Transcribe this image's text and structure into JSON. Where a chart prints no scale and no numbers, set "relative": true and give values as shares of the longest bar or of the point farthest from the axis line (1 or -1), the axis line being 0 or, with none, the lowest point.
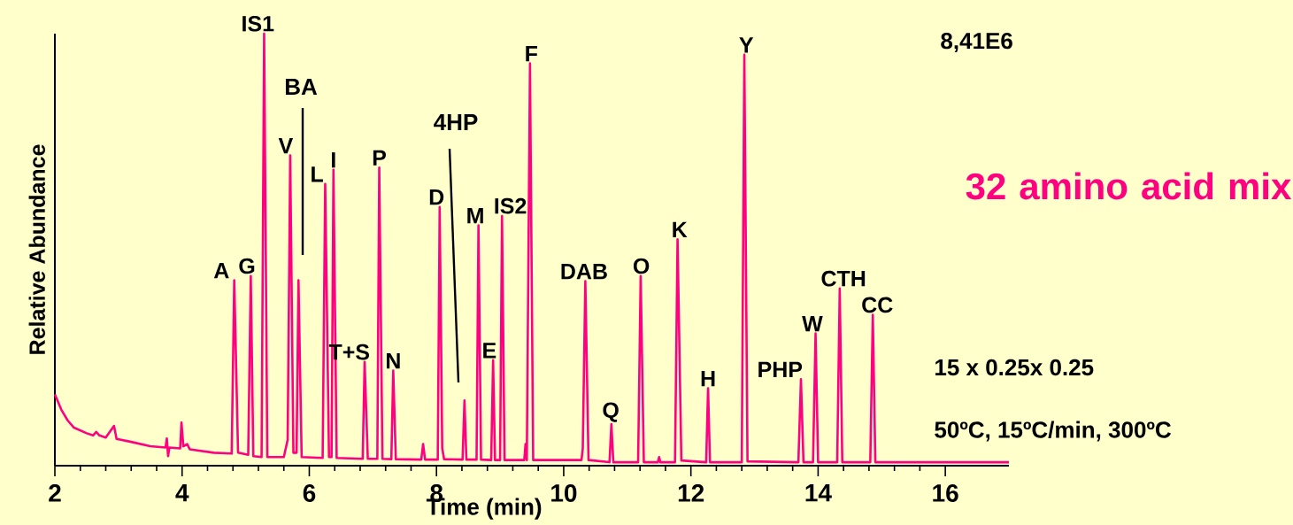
{
  "chart_data": {
    "type": "line",
    "relative": true,
    "title": "32 amino acid mix",
    "xlabel": "Time (min)",
    "ylabel": "Relative Abundance",
    "xlim": [
      2,
      17
    ],
    "xticks": [
      2,
      4,
      6,
      8,
      10,
      12,
      14,
      16
    ],
    "series": [
      {
        "color": "#ff0080",
        "x": [
          2.0,
          2.1,
          2.2,
          2.3,
          2.5,
          2.6,
          2.65,
          2.7,
          2.8,
          2.93,
          2.97,
          3.2,
          3.5,
          3.74,
          3.76,
          3.78,
          3.8,
          3.97,
          3.99,
          4.02,
          4.08,
          4.12,
          4.5,
          4.78,
          4.82,
          4.88,
          5.04,
          5.08,
          5.12,
          5.25,
          5.29,
          5.34,
          5.6,
          5.66,
          5.7,
          5.75,
          5.8,
          5.83,
          5.88,
          6.21,
          6.25,
          6.31,
          6.35,
          6.38,
          6.43,
          6.84,
          6.87,
          6.92,
          7.07,
          7.1,
          7.15,
          7.29,
          7.32,
          7.36,
          7.76,
          7.79,
          7.82,
          8.02,
          8.05,
          8.09,
          8.12,
          8.41,
          8.44,
          8.47,
          8.63,
          8.66,
          8.7,
          8.86,
          8.89,
          8.92,
          9.0,
          9.03,
          9.07,
          9.38,
          9.4,
          9.42,
          9.47,
          9.52,
          10.28,
          10.3,
          10.34,
          10.39,
          10.72,
          10.75,
          10.78,
          11.17,
          11.21,
          11.26,
          11.48,
          11.5,
          11.52,
          11.75,
          11.79,
          11.85,
          12.24,
          12.27,
          12.3,
          12.8,
          12.84,
          12.89,
          13.69,
          13.73,
          13.77,
          13.92,
          13.96,
          14.0,
          14.3,
          14.34,
          14.38,
          14.82,
          14.86,
          14.9,
          17.0
        ],
        "values": [
          0.165,
          0.13,
          0.105,
          0.088,
          0.075,
          0.07,
          0.078,
          0.07,
          0.065,
          0.092,
          0.062,
          0.055,
          0.045,
          0.042,
          0.063,
          0.022,
          0.042,
          0.04,
          0.1,
          0.045,
          0.05,
          0.038,
          0.03,
          0.028,
          0.429,
          0.03,
          0.025,
          0.439,
          0.022,
          0.02,
          1.0,
          0.02,
          0.02,
          0.06,
          0.718,
          0.03,
          0.03,
          0.429,
          0.02,
          0.018,
          0.652,
          0.02,
          0.02,
          0.685,
          0.018,
          0.016,
          0.24,
          0.016,
          0.016,
          0.69,
          0.016,
          0.015,
          0.22,
          0.015,
          0.014,
          0.05,
          0.014,
          0.014,
          0.599,
          0.04,
          0.015,
          0.014,
          0.151,
          0.014,
          0.014,
          0.556,
          0.014,
          0.013,
          0.244,
          0.013,
          0.013,
          0.578,
          0.013,
          0.013,
          0.05,
          0.013,
          0.931,
          0.013,
          0.013,
          0.04,
          0.427,
          0.013,
          0.008,
          0.096,
          0.008,
          0.008,
          0.439,
          0.008,
          0.008,
          0.02,
          0.008,
          0.008,
          0.524,
          0.012,
          0.008,
          0.179,
          0.008,
          0.008,
          0.951,
          0.01,
          0.008,
          0.2,
          0.008,
          0.008,
          0.306,
          0.008,
          0.008,
          0.41,
          0.008,
          0.008,
          0.349,
          0.008,
          0.008
        ]
      }
    ],
    "annotations": [
      "8,41E6",
      {
        "text": "A",
        "x": 4.82,
        "y": 0.429
      },
      {
        "text": "G",
        "x": 5.08,
        "y": 0.439
      },
      {
        "text": "IS1",
        "x": 5.29,
        "y": 1.0
      },
      {
        "text": "V",
        "x": 5.7,
        "y": 0.718
      },
      "BA",
      {
        "text": "L",
        "x": 6.25,
        "y": 0.652
      },
      {
        "text": "I",
        "x": 6.38,
        "y": 0.685
      },
      {
        "text": "T+S",
        "x": 6.87,
        "y": 0.24
      },
      {
        "text": "P",
        "x": 7.1,
        "y": 0.69
      },
      {
        "text": "N",
        "x": 7.32,
        "y": 0.22
      },
      {
        "text": "D",
        "x": 8.05,
        "y": 0.599
      },
      "4HP",
      {
        "text": "M",
        "x": 8.66,
        "y": 0.556
      },
      {
        "text": "E",
        "x": 8.89,
        "y": 0.244
      },
      {
        "text": "IS2",
        "x": 9.03,
        "y": 0.578
      },
      {
        "text": "F",
        "x": 9.47,
        "y": 0.931
      },
      {
        "text": "DAB",
        "x": 10.34,
        "y": 0.427
      },
      {
        "text": "Q",
        "x": 10.75,
        "y": 0.096
      },
      {
        "text": "O",
        "x": 11.21,
        "y": 0.439
      },
      {
        "text": "K",
        "x": 11.79,
        "y": 0.524
      },
      {
        "text": "H",
        "x": 12.27,
        "y": 0.179
      },
      {
        "text": "Y",
        "x": 12.84,
        "y": 0.951
      },
      {
        "text": "PHP",
        "x": 13.73,
        "y": 0.2
      },
      {
        "text": "W",
        "x": 13.96,
        "y": 0.306
      },
      {
        "text": "CTH",
        "x": 14.34,
        "y": 0.41
      },
      {
        "text": "CC",
        "x": 14.86,
        "y": 0.349
      },
      "15 x 0.25x 0.25",
      "50ºC, 15ºC/min, 300ºC"
    ]
  }
}
